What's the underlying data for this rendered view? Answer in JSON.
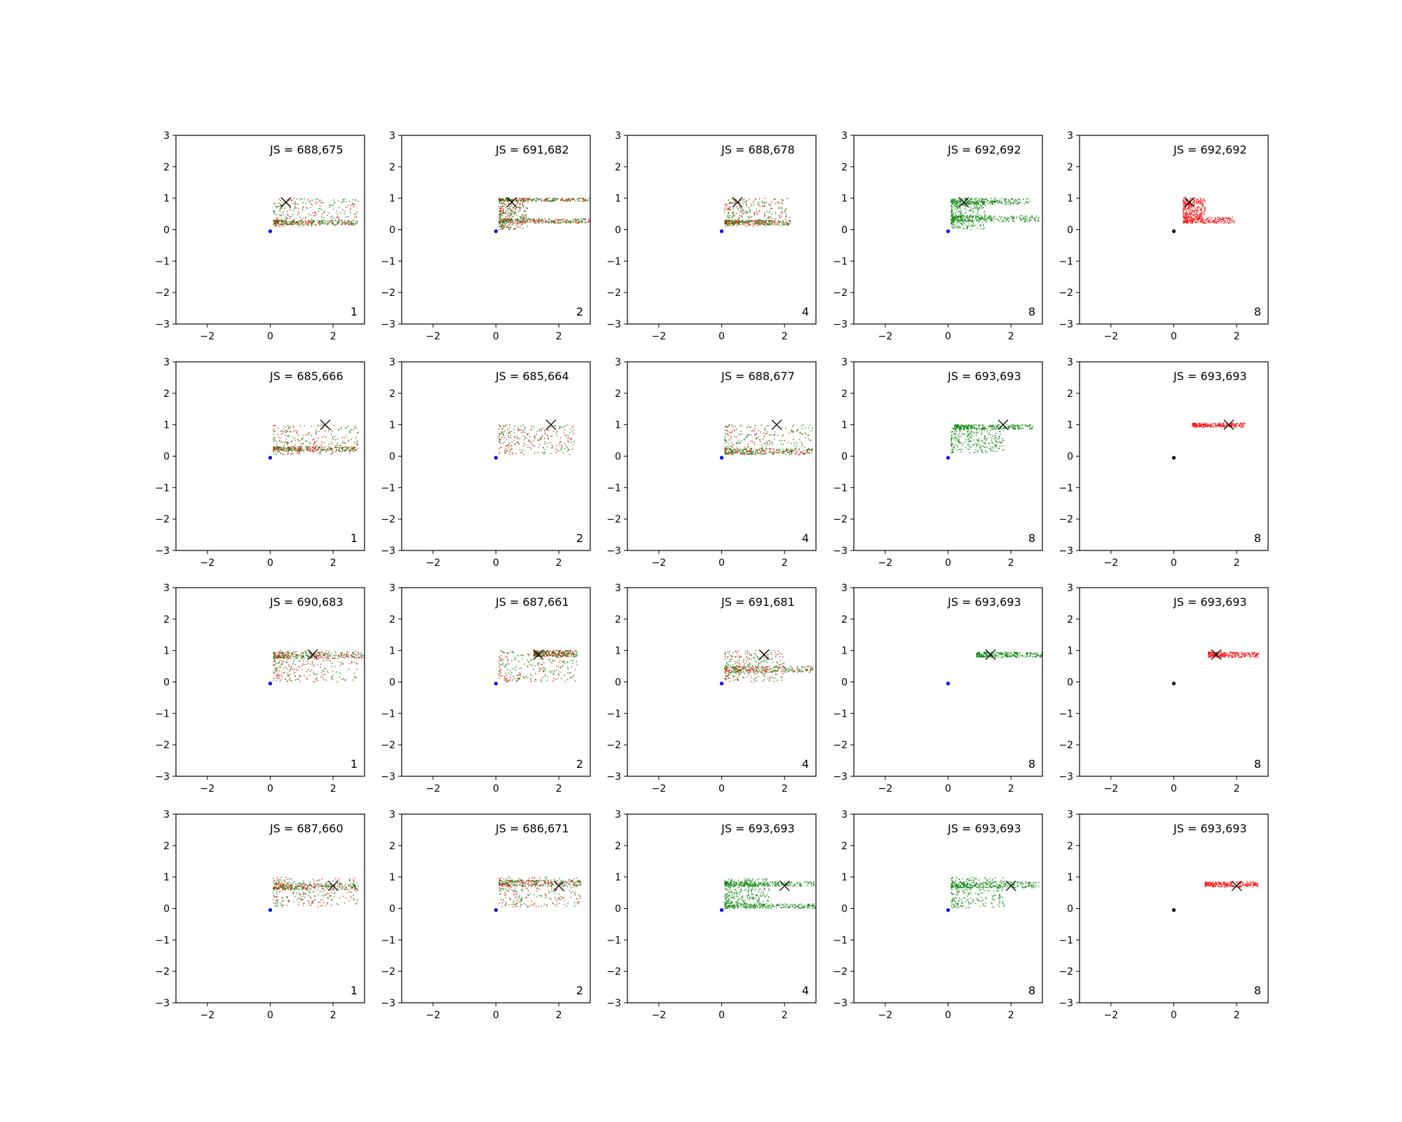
{
  "figure": {
    "rows": 4,
    "cols": 5,
    "axis_common": {
      "xlim": [
        -3,
        3
      ],
      "ylim": [
        -3,
        3
      ],
      "xticks": [
        -2,
        0,
        2
      ],
      "yticks": [
        -3,
        -2,
        -1,
        0,
        1,
        2,
        3
      ]
    },
    "colors": {
      "generated_a": "#ff0000",
      "generated_b": "#008000",
      "origin_blue": "#0000ff",
      "origin_black": "#000000",
      "target_marker": "#000000"
    }
  },
  "chart_data": [
    {
      "type": "scatter",
      "row": 0,
      "col": 0,
      "js_label": "JS = 688,675",
      "corner_label": "1",
      "target": [
        0.5,
        0.87
      ],
      "origin": [
        0,
        -0.05
      ],
      "origin_color": "blue",
      "mix": "both",
      "clusters": [
        {
          "x": [
            0.1,
            2.8
          ],
          "y": [
            0.1,
            1.0
          ]
        },
        {
          "x": [
            0.1,
            2.8
          ],
          "y": [
            0.15,
            0.3
          ]
        }
      ],
      "xlim": [
        -3,
        3
      ],
      "ylim": [
        -3,
        3
      ]
    },
    {
      "type": "scatter",
      "row": 0,
      "col": 1,
      "js_label": "JS = 691,682",
      "corner_label": "2",
      "target": [
        0.5,
        0.87
      ],
      "origin": [
        0,
        -0.05
      ],
      "origin_color": "blue",
      "mix": "both",
      "clusters": [
        {
          "x": [
            0.1,
            3.0
          ],
          "y": [
            0.9,
            1.0
          ]
        },
        {
          "x": [
            0.1,
            3.0
          ],
          "y": [
            0.2,
            0.35
          ]
        },
        {
          "x": [
            0.1,
            1.0
          ],
          "y": [
            0.0,
            0.9
          ]
        }
      ],
      "xlim": [
        -3,
        3
      ],
      "ylim": [
        -3,
        3
      ]
    },
    {
      "type": "scatter",
      "row": 0,
      "col": 2,
      "js_label": "JS = 688,678",
      "corner_label": "4",
      "target": [
        0.5,
        0.87
      ],
      "origin": [
        0,
        -0.05
      ],
      "origin_color": "blue",
      "mix": "both",
      "clusters": [
        {
          "x": [
            0.1,
            2.2
          ],
          "y": [
            0.1,
            1.0
          ]
        },
        {
          "x": [
            0.1,
            2.2
          ],
          "y": [
            0.15,
            0.3
          ]
        }
      ],
      "xlim": [
        -3,
        3
      ],
      "ylim": [
        -3,
        3
      ]
    },
    {
      "type": "scatter",
      "row": 0,
      "col": 3,
      "js_label": "JS = 692,692",
      "corner_label": "8",
      "target": [
        0.5,
        0.87
      ],
      "origin": [
        0,
        -0.05
      ],
      "origin_color": "blue",
      "mix": "green",
      "clusters": [
        {
          "x": [
            0.1,
            2.6
          ],
          "y": [
            0.8,
            1.0
          ]
        },
        {
          "x": [
            0.1,
            2.9
          ],
          "y": [
            0.25,
            0.45
          ]
        },
        {
          "x": [
            0.1,
            1.2
          ],
          "y": [
            0.0,
            0.9
          ]
        }
      ],
      "xlim": [
        -3,
        3
      ],
      "ylim": [
        -3,
        3
      ]
    },
    {
      "type": "scatter",
      "row": 0,
      "col": 4,
      "js_label": "JS = 692,692",
      "corner_label": "8",
      "target": [
        0.5,
        0.87
      ],
      "origin": [
        0,
        -0.05
      ],
      "origin_color": "black",
      "mix": "red",
      "clusters": [
        {
          "x": [
            0.3,
            2.0
          ],
          "y": [
            0.2,
            0.4
          ]
        },
        {
          "x": [
            0.3,
            1.0
          ],
          "y": [
            0.4,
            1.0
          ]
        }
      ],
      "xlim": [
        -3,
        3
      ],
      "ylim": [
        -3,
        3
      ]
    },
    {
      "type": "scatter",
      "row": 1,
      "col": 0,
      "js_label": "JS = 685,666",
      "corner_label": "1",
      "target": [
        1.75,
        1.0
      ],
      "origin": [
        0,
        -0.05
      ],
      "origin_color": "blue",
      "mix": "both",
      "clusters": [
        {
          "x": [
            0.1,
            2.8
          ],
          "y": [
            0.05,
            1.0
          ]
        },
        {
          "x": [
            0.1,
            2.8
          ],
          "y": [
            0.15,
            0.3
          ]
        }
      ],
      "xlim": [
        -3,
        3
      ],
      "ylim": [
        -3,
        3
      ]
    },
    {
      "type": "scatter",
      "row": 1,
      "col": 1,
      "js_label": "JS = 685,664",
      "corner_label": "2",
      "target": [
        1.75,
        1.0
      ],
      "origin": [
        0,
        -0.05
      ],
      "origin_color": "blue",
      "mix": "both",
      "clusters": [
        {
          "x": [
            0.1,
            2.5
          ],
          "y": [
            0.05,
            1.0
          ]
        }
      ],
      "xlim": [
        -3,
        3
      ],
      "ylim": [
        -3,
        3
      ]
    },
    {
      "type": "scatter",
      "row": 1,
      "col": 2,
      "js_label": "JS = 688,677",
      "corner_label": "4",
      "target": [
        1.75,
        1.0
      ],
      "origin": [
        0,
        -0.05
      ],
      "origin_color": "blue",
      "mix": "both",
      "clusters": [
        {
          "x": [
            0.1,
            2.9
          ],
          "y": [
            0.05,
            1.0
          ]
        },
        {
          "x": [
            0.1,
            2.9
          ],
          "y": [
            0.05,
            0.25
          ]
        }
      ],
      "xlim": [
        -3,
        3
      ],
      "ylim": [
        -3,
        3
      ]
    },
    {
      "type": "scatter",
      "row": 1,
      "col": 3,
      "js_label": "JS = 693,693",
      "corner_label": "8",
      "target": [
        1.75,
        1.0
      ],
      "origin": [
        0,
        -0.05
      ],
      "origin_color": "blue",
      "mix": "green",
      "clusters": [
        {
          "x": [
            0.2,
            2.7
          ],
          "y": [
            0.85,
            1.0
          ]
        },
        {
          "x": [
            0.1,
            1.8
          ],
          "y": [
            0.1,
            0.9
          ]
        }
      ],
      "xlim": [
        -3,
        3
      ],
      "ylim": [
        -3,
        3
      ]
    },
    {
      "type": "scatter",
      "row": 1,
      "col": 4,
      "js_label": "JS = 693,693",
      "corner_label": "8",
      "target": [
        1.75,
        1.0
      ],
      "origin": [
        0,
        -0.05
      ],
      "origin_color": "black",
      "mix": "red",
      "clusters": [
        {
          "x": [
            0.6,
            2.3
          ],
          "y": [
            0.92,
            1.05
          ]
        }
      ],
      "xlim": [
        -3,
        3
      ],
      "ylim": [
        -3,
        3
      ]
    },
    {
      "type": "scatter",
      "row": 2,
      "col": 0,
      "js_label": "JS = 690,683",
      "corner_label": "1",
      "target": [
        1.35,
        0.87
      ],
      "origin": [
        0,
        -0.05
      ],
      "origin_color": "blue",
      "mix": "both",
      "clusters": [
        {
          "x": [
            0.1,
            3.0
          ],
          "y": [
            0.75,
            0.95
          ]
        },
        {
          "x": [
            0.1,
            2.8
          ],
          "y": [
            0.0,
            1.0
          ]
        }
      ],
      "xlim": [
        -3,
        3
      ],
      "ylim": [
        -3,
        3
      ]
    },
    {
      "type": "scatter",
      "row": 2,
      "col": 1,
      "js_label": "JS = 687,661",
      "corner_label": "2",
      "target": [
        1.35,
        0.87
      ],
      "origin": [
        0,
        -0.05
      ],
      "origin_color": "blue",
      "mix": "both",
      "clusters": [
        {
          "x": [
            0.1,
            2.6
          ],
          "y": [
            0.0,
            1.0
          ]
        },
        {
          "x": [
            1.2,
            2.6
          ],
          "y": [
            0.8,
            1.0
          ]
        }
      ],
      "xlim": [
        -3,
        3
      ],
      "ylim": [
        -3,
        3
      ]
    },
    {
      "type": "scatter",
      "row": 2,
      "col": 2,
      "js_label": "JS = 691,681",
      "corner_label": "4",
      "target": [
        1.35,
        0.87
      ],
      "origin": [
        0,
        -0.05
      ],
      "origin_color": "blue",
      "mix": "both",
      "clusters": [
        {
          "x": [
            0.1,
            2.9
          ],
          "y": [
            0.3,
            0.5
          ]
        },
        {
          "x": [
            0.1,
            2.0
          ],
          "y": [
            0.0,
            1.0
          ]
        }
      ],
      "xlim": [
        -3,
        3
      ],
      "ylim": [
        -3,
        3
      ]
    },
    {
      "type": "scatter",
      "row": 2,
      "col": 3,
      "js_label": "JS = 693,693",
      "corner_label": "8",
      "target": [
        1.35,
        0.87
      ],
      "origin": [
        0,
        -0.05
      ],
      "origin_color": "blue",
      "mix": "green",
      "clusters": [
        {
          "x": [
            0.9,
            3.0
          ],
          "y": [
            0.78,
            0.95
          ]
        }
      ],
      "xlim": [
        -3,
        3
      ],
      "ylim": [
        -3,
        3
      ]
    },
    {
      "type": "scatter",
      "row": 2,
      "col": 4,
      "js_label": "JS = 693,693",
      "corner_label": "8",
      "target": [
        1.35,
        0.87
      ],
      "origin": [
        0,
        -0.05
      ],
      "origin_color": "black",
      "mix": "red",
      "clusters": [
        {
          "x": [
            1.1,
            2.7
          ],
          "y": [
            0.78,
            0.95
          ]
        }
      ],
      "xlim": [
        -3,
        3
      ],
      "ylim": [
        -3,
        3
      ]
    },
    {
      "type": "scatter",
      "row": 3,
      "col": 0,
      "js_label": "JS = 687,660",
      "corner_label": "1",
      "target": [
        2.0,
        0.72
      ],
      "origin": [
        0,
        -0.05
      ],
      "origin_color": "blue",
      "mix": "both",
      "clusters": [
        {
          "x": [
            0.1,
            2.8
          ],
          "y": [
            0.05,
            1.0
          ]
        },
        {
          "x": [
            0.1,
            2.8
          ],
          "y": [
            0.6,
            0.8
          ]
        }
      ],
      "xlim": [
        -3,
        3
      ],
      "ylim": [
        -3,
        3
      ]
    },
    {
      "type": "scatter",
      "row": 3,
      "col": 1,
      "js_label": "JS = 686,671",
      "corner_label": "2",
      "target": [
        2.0,
        0.72
      ],
      "origin": [
        0,
        -0.05
      ],
      "origin_color": "blue",
      "mix": "both",
      "clusters": [
        {
          "x": [
            0.1,
            2.7
          ],
          "y": [
            0.05,
            1.0
          ]
        },
        {
          "x": [
            0.1,
            2.7
          ],
          "y": [
            0.7,
            0.9
          ]
        }
      ],
      "xlim": [
        -3,
        3
      ],
      "ylim": [
        -3,
        3
      ]
    },
    {
      "type": "scatter",
      "row": 3,
      "col": 2,
      "js_label": "JS = 693,693",
      "corner_label": "4",
      "target": [
        2.0,
        0.72
      ],
      "origin": [
        0,
        -0.05
      ],
      "origin_color": "blue",
      "mix": "green",
      "clusters": [
        {
          "x": [
            0.1,
            3.0
          ],
          "y": [
            0.7,
            0.85
          ]
        },
        {
          "x": [
            0.1,
            3.0
          ],
          "y": [
            0.0,
            0.15
          ]
        },
        {
          "x": [
            0.1,
            1.5
          ],
          "y": [
            0.15,
            0.95
          ]
        }
      ],
      "xlim": [
        -3,
        3
      ],
      "ylim": [
        -3,
        3
      ]
    },
    {
      "type": "scatter",
      "row": 3,
      "col": 3,
      "js_label": "JS = 693,693",
      "corner_label": "8",
      "target": [
        2.0,
        0.72
      ],
      "origin": [
        0,
        -0.05
      ],
      "origin_color": "blue",
      "mix": "green",
      "clusters": [
        {
          "x": [
            0.1,
            2.9
          ],
          "y": [
            0.65,
            0.85
          ]
        },
        {
          "x": [
            0.1,
            1.8
          ],
          "y": [
            0.0,
            1.0
          ]
        }
      ],
      "xlim": [
        -3,
        3
      ],
      "ylim": [
        -3,
        3
      ]
    },
    {
      "type": "scatter",
      "row": 3,
      "col": 4,
      "js_label": "JS = 693,693",
      "corner_label": "8",
      "target": [
        2.0,
        0.72
      ],
      "origin": [
        0,
        -0.05
      ],
      "origin_color": "black",
      "mix": "red",
      "clusters": [
        {
          "x": [
            1.0,
            2.7
          ],
          "y": [
            0.68,
            0.85
          ]
        }
      ],
      "xlim": [
        -3,
        3
      ],
      "ylim": [
        -3,
        3
      ]
    }
  ]
}
